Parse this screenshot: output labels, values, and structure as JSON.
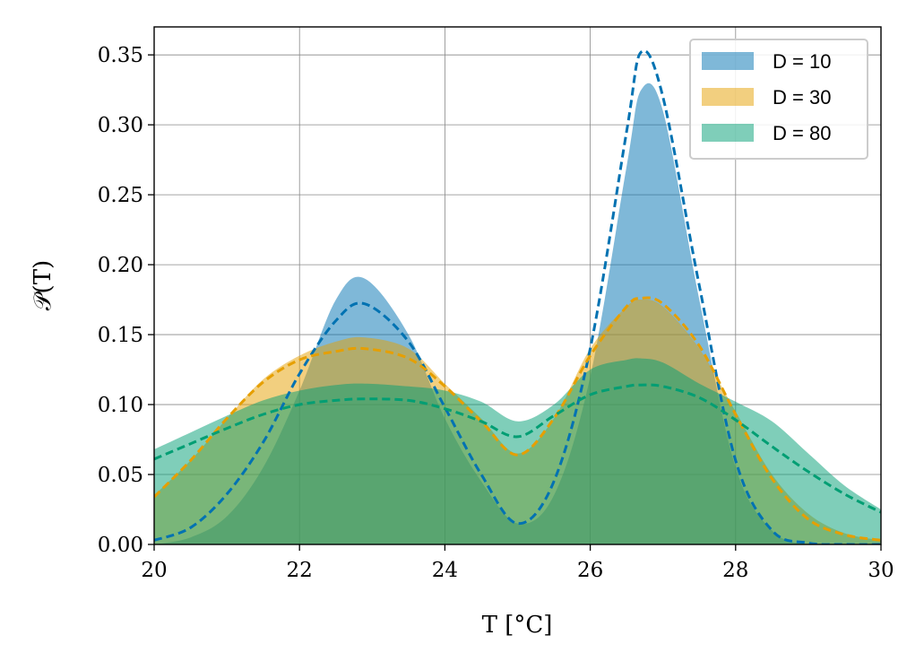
{
  "chart_data": {
    "type": "area",
    "xlabel": "T [°C]",
    "ylabel": "𝒫(T)",
    "xlim": [
      20,
      30
    ],
    "ylim": [
      0,
      0.37
    ],
    "xticks": [
      "20",
      "22",
      "24",
      "26",
      "28",
      "30"
    ],
    "yticks": [
      "0.00",
      "0.05",
      "0.10",
      "0.15",
      "0.20",
      "0.25",
      "0.30",
      "0.35"
    ],
    "grid": true,
    "legend_position": "top-right",
    "x": [
      20.0,
      20.5,
      21.0,
      21.5,
      22.0,
      22.5,
      22.9,
      23.5,
      24.0,
      24.5,
      25.0,
      25.5,
      26.0,
      26.5,
      26.7,
      27.0,
      27.5,
      28.0,
      28.5,
      29.0,
      29.5,
      30.0
    ],
    "series": [
      {
        "name": "D = 10",
        "color": "#0072b2",
        "histogram": [
          0.0,
          0.005,
          0.02,
          0.055,
          0.11,
          0.175,
          0.19,
          0.15,
          0.09,
          0.045,
          0.015,
          0.035,
          0.12,
          0.27,
          0.325,
          0.31,
          0.175,
          0.055,
          0.01,
          0.0,
          0.0,
          0.0
        ],
        "fit": [
          0.003,
          0.012,
          0.036,
          0.073,
          0.122,
          0.16,
          0.172,
          0.145,
          0.098,
          0.05,
          0.015,
          0.045,
          0.14,
          0.295,
          0.352,
          0.32,
          0.185,
          0.06,
          0.01,
          0.001,
          0.0,
          0.0
        ]
      },
      {
        "name": "D = 30",
        "color": "#e69f00",
        "histogram": [
          0.035,
          0.06,
          0.09,
          0.118,
          0.135,
          0.145,
          0.148,
          0.14,
          0.115,
          0.09,
          0.065,
          0.09,
          0.14,
          0.17,
          0.175,
          0.17,
          0.14,
          0.095,
          0.05,
          0.022,
          0.008,
          0.003
        ],
        "fit": [
          0.034,
          0.06,
          0.09,
          0.116,
          0.132,
          0.138,
          0.14,
          0.133,
          0.113,
          0.088,
          0.064,
          0.09,
          0.135,
          0.17,
          0.176,
          0.172,
          0.142,
          0.093,
          0.047,
          0.018,
          0.007,
          0.003
        ]
      },
      {
        "name": "D = 80",
        "color": "#009e73",
        "histogram": [
          0.068,
          0.08,
          0.092,
          0.103,
          0.11,
          0.114,
          0.115,
          0.113,
          0.11,
          0.102,
          0.088,
          0.1,
          0.125,
          0.132,
          0.133,
          0.13,
          0.115,
          0.102,
          0.088,
          0.065,
          0.042,
          0.025
        ],
        "fit": [
          0.061,
          0.072,
          0.083,
          0.093,
          0.1,
          0.103,
          0.104,
          0.103,
          0.097,
          0.088,
          0.077,
          0.092,
          0.107,
          0.113,
          0.114,
          0.113,
          0.105,
          0.089,
          0.07,
          0.052,
          0.036,
          0.023
        ]
      }
    ]
  }
}
